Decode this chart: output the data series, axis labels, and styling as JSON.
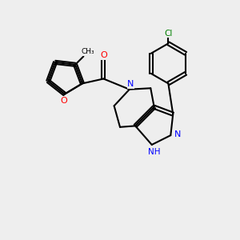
{
  "background_color": "#eeeeee",
  "bond_color": "#000000",
  "atom_colors": {
    "N": "#0000ff",
    "O": "#ff0000",
    "Cl": "#008000",
    "C": "#000000"
  },
  "figsize": [
    3.0,
    3.0
  ],
  "dpi": 100
}
